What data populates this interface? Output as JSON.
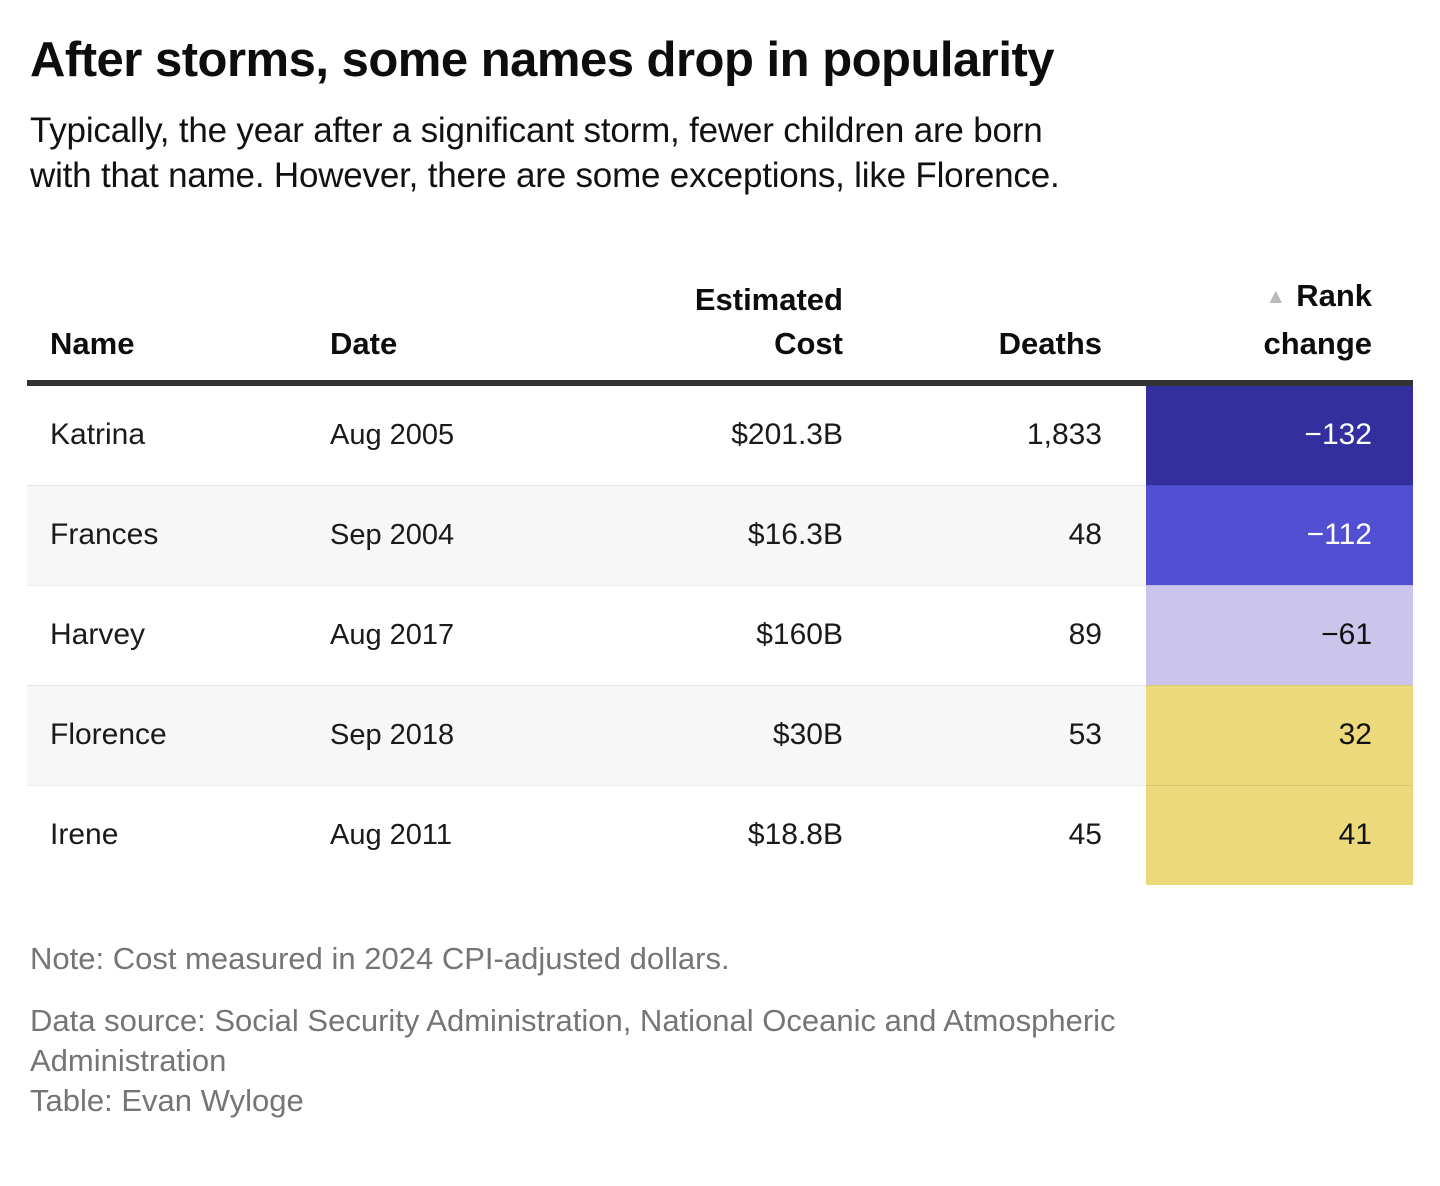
{
  "header": {
    "title": "After storms, some names drop in popularity",
    "subtitle_line1": "Typically, the year after a significant storm, fewer children are born",
    "subtitle_line2": "with that name. However, there are some exceptions, like Florence."
  },
  "table": {
    "columns": {
      "name": "Name",
      "date": "Date",
      "cost_line1": "Estimated",
      "cost_line2": "Cost",
      "deaths": "Deaths",
      "rank_line1": "Rank",
      "rank_line2": "change",
      "sort_icon": "▲"
    },
    "rows": [
      {
        "name": "Katrina",
        "date": "Aug 2005",
        "cost": "$201.3B",
        "deaths": "1,833",
        "rank_change": "−132",
        "rank_bg": "#332f9e",
        "rank_fg": "#ffffff"
      },
      {
        "name": "Frances",
        "date": "Sep 2004",
        "cost": "$16.3B",
        "deaths": "48",
        "rank_change": "−112",
        "rank_bg": "#514fd2",
        "rank_fg": "#ffffff"
      },
      {
        "name": "Harvey",
        "date": "Aug 2017",
        "cost": "$160B",
        "deaths": "89",
        "rank_change": "−61",
        "rank_bg": "#cbc5ec",
        "rank_fg": "#111111"
      },
      {
        "name": "Florence",
        "date": "Sep 2018",
        "cost": "$30B",
        "deaths": "53",
        "rank_change": "32",
        "rank_bg": "#ecd97c",
        "rank_fg": "#111111"
      },
      {
        "name": "Irene",
        "date": "Aug 2011",
        "cost": "$18.8B",
        "deaths": "45",
        "rank_change": "41",
        "rank_bg": "#ecd97c",
        "rank_fg": "#111111"
      }
    ]
  },
  "footer": {
    "note": "Note: Cost measured in 2024 CPI-adjusted dollars.",
    "data_source_line1": "Data source: Social Security Administration, National Oceanic and Atmospheric",
    "data_source_line2": "Administration",
    "credit": "Table: Evan Wyloge"
  },
  "colors": {
    "header_border": "#333333",
    "zebra_row": "#f7f7f7",
    "sort_icon_gray": "#b9b9b9",
    "footer_gray": "#757575",
    "rank_scale": [
      "#332f9e",
      "#514fd2",
      "#cbc5ec",
      "#ecd97c"
    ]
  },
  "chart_data": {
    "type": "table",
    "title": "After storms, some names drop in popularity",
    "subtitle": "Typically, the year after a significant storm, fewer children are born with that name. However, there are some exceptions, like Florence.",
    "columns": [
      "Name",
      "Date",
      "Estimated Cost",
      "Deaths",
      "Rank change"
    ],
    "rows": [
      [
        "Katrina",
        "Aug 2005",
        "$201.3B",
        1833,
        -132
      ],
      [
        "Frances",
        "Sep 2004",
        "$16.3B",
        48,
        -112
      ],
      [
        "Harvey",
        "Aug 2017",
        "$160B",
        89,
        -61
      ],
      [
        "Florence",
        "Sep 2018",
        "$30B",
        53,
        32
      ],
      [
        "Irene",
        "Aug 2011",
        "$18.8B",
        45,
        41
      ]
    ],
    "heatmap_column": "Rank change",
    "sort_indicator": {
      "column": "Rank change",
      "direction": "ascending"
    },
    "note": "Cost measured in 2024 CPI-adjusted dollars.",
    "source": "Social Security Administration, National Oceanic and Atmospheric Administration",
    "credit": "Evan Wyloge"
  }
}
